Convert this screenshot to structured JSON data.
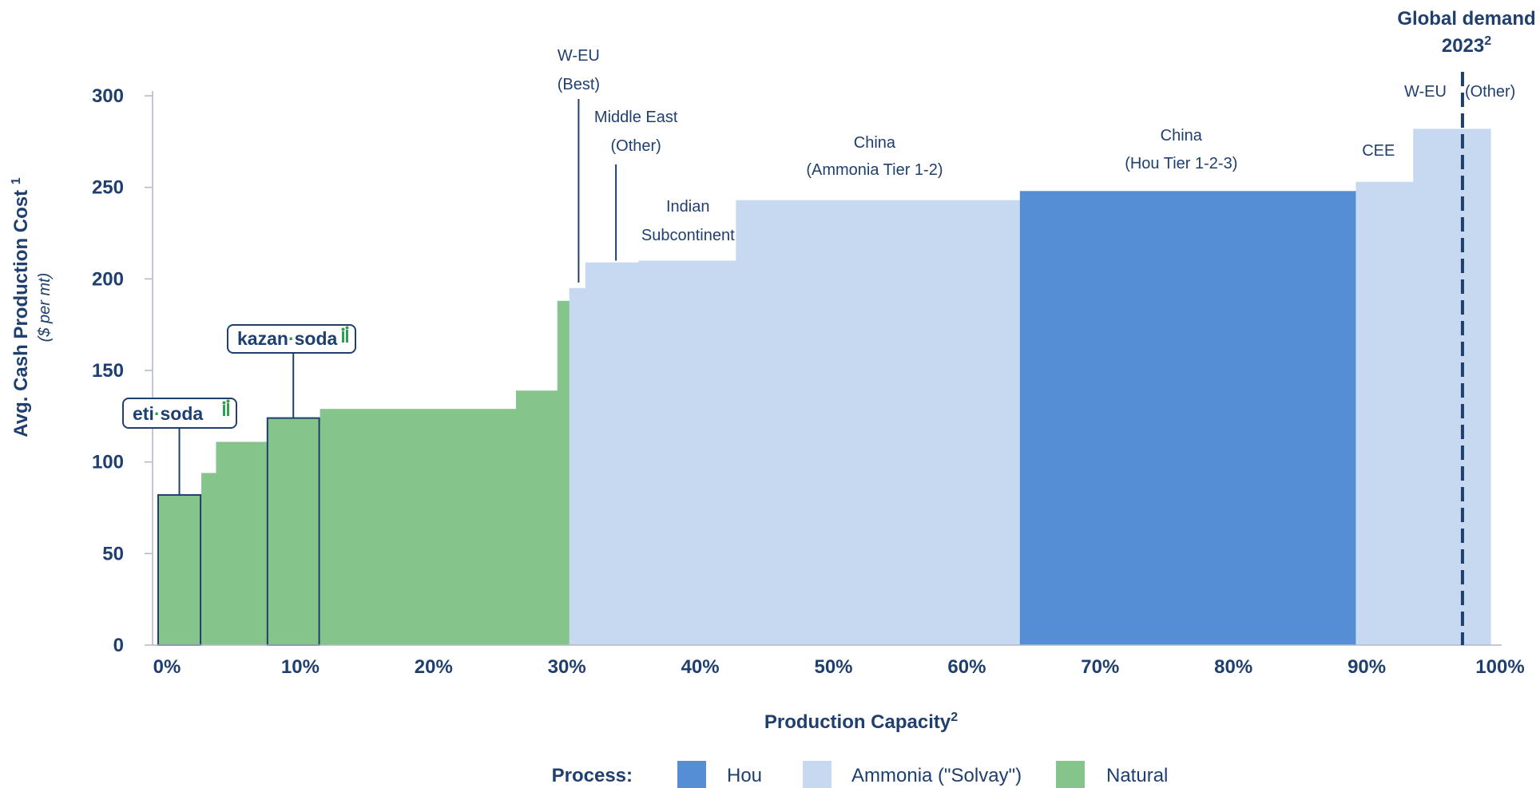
{
  "chart_data": {
    "type": "bar",
    "subtype": "cost-curve",
    "ylabel": "Avg. Cash Production Cost",
    "ylabel_footnote": "1",
    "ylabel_unit": "($ per mt)",
    "xlabel": "Production Capacity",
    "xlabel_footnote": "2",
    "ylim": [
      0,
      300
    ],
    "xlim": [
      0,
      100
    ],
    "yticks": [
      0,
      50,
      100,
      150,
      200,
      250,
      300
    ],
    "ytick_labels": [
      "0",
      "50",
      "100",
      "150",
      "200",
      "250",
      "300"
    ],
    "xticks": [
      0,
      10,
      20,
      30,
      40,
      50,
      60,
      70,
      80,
      90,
      100
    ],
    "xtick_labels": [
      "0%",
      "10%",
      "20%",
      "30%",
      "40%",
      "50%",
      "60%",
      "70%",
      "80%",
      "90%",
      "100%"
    ],
    "grid": false,
    "colors": {
      "Hou": "#558ed5",
      "Ammonia": "#c6d9f0",
      "Natural": "#85c48b",
      "text": "#1f3f6e"
    },
    "segments": [
      {
        "x0": 0,
        "x1": 3.3,
        "y": 82,
        "process": "Natural",
        "highlight": "eti-soda"
      },
      {
        "x0": 3.3,
        "x1": 4.4,
        "y": 94,
        "process": "Natural"
      },
      {
        "x0": 4.4,
        "x1": 8.2,
        "y": 111,
        "process": "Natural"
      },
      {
        "x0": 8.2,
        "x1": 12.2,
        "y": 124,
        "process": "Natural",
        "highlight": "kazan-soda"
      },
      {
        "x0": 12.2,
        "x1": 26.9,
        "y": 129,
        "process": "Natural"
      },
      {
        "x0": 26.9,
        "x1": 30.0,
        "y": 139,
        "process": "Natural"
      },
      {
        "x0": 30.0,
        "x1": 30.9,
        "y": 188,
        "process": "Natural"
      },
      {
        "x0": 30.9,
        "x1": 32.1,
        "y": 195,
        "process": "Ammonia"
      },
      {
        "x0": 32.1,
        "x1": 36.1,
        "y": 209,
        "process": "Ammonia"
      },
      {
        "x0": 36.1,
        "x1": 43.4,
        "y": 210,
        "process": "Ammonia"
      },
      {
        "x0": 43.4,
        "x1": 64.7,
        "y": 243,
        "process": "Ammonia"
      },
      {
        "x0": 64.7,
        "x1": 89.9,
        "y": 248,
        "process": "Hou"
      },
      {
        "x0": 89.9,
        "x1": 94.2,
        "y": 253,
        "process": "Ammonia"
      },
      {
        "x0": 94.2,
        "x1": 100.0,
        "y": 282,
        "process": "Ammonia"
      }
    ],
    "region_labels": [
      {
        "lines": [
          "W-EU",
          "(Best)"
        ],
        "x": 31.6,
        "leader_x": 31.6,
        "leader_y": 198
      },
      {
        "lines": [
          "Middle East",
          "(Other)"
        ],
        "x": 35.9,
        "leader_x": 34.4,
        "leader_y": 210
      },
      {
        "lines": [
          "Indian",
          "Subcontinent"
        ],
        "x": 39.8
      },
      {
        "lines": [
          "China",
          "(Ammonia Tier 1-2)"
        ],
        "x": 53.8
      },
      {
        "lines": [
          "China",
          "(Hou Tier 1-2-3)"
        ],
        "x": 76.8
      },
      {
        "lines": [
          "CEE"
        ],
        "x": 91.6
      },
      {
        "lines": [
          "W-EU",
          "(Other)"
        ],
        "x": 97.6,
        "split": true
      }
    ],
    "demand_line": {
      "x": 97.9,
      "label_lines": [
        "Global demand",
        "2023"
      ],
      "label_footnote": "2"
    },
    "logos": [
      {
        "name": "eti-soda",
        "text_left": "eti",
        "text_right": "soda"
      },
      {
        "name": "kazan-soda",
        "text_left": "kazan",
        "text_right": "soda"
      }
    ],
    "legend": {
      "title": "Process:",
      "entries": [
        {
          "label": "Hou",
          "process": "Hou"
        },
        {
          "label": "Ammonia (\"Solvay\")",
          "process": "Ammonia"
        },
        {
          "label": "Natural",
          "process": "Natural"
        }
      ]
    }
  }
}
